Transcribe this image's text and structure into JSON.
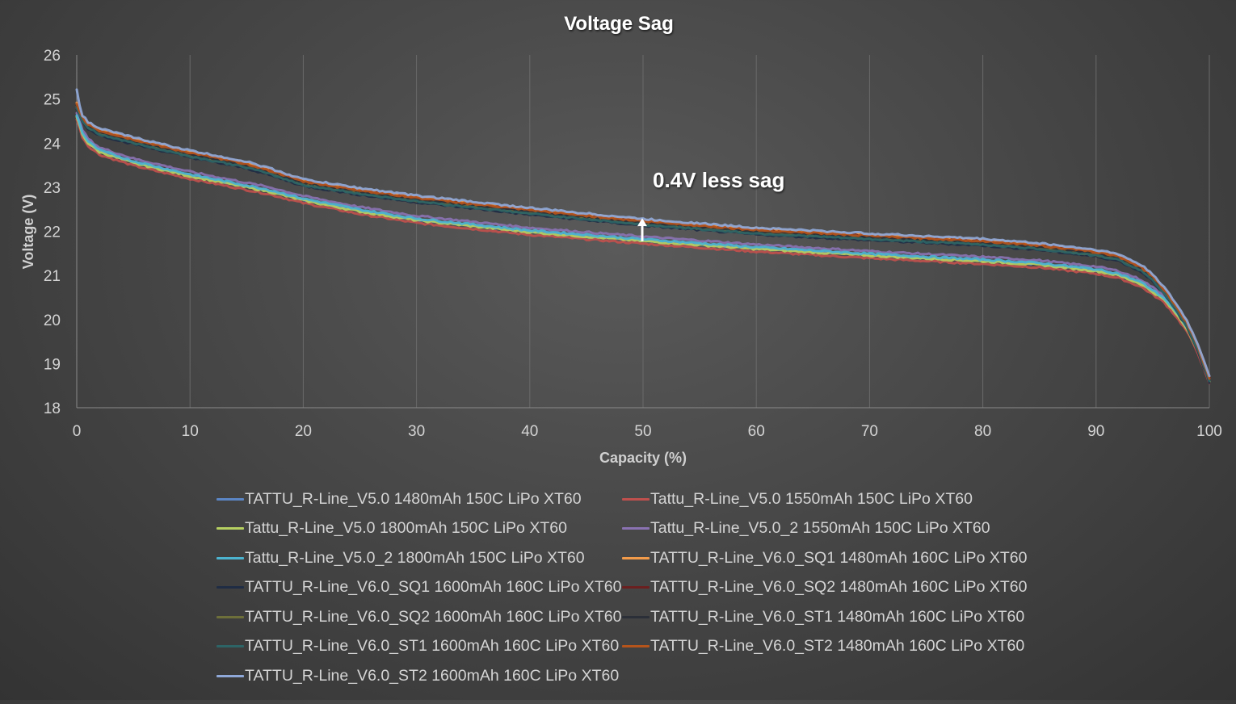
{
  "chart_data": {
    "type": "line",
    "title": "Voltage Sag",
    "xlabel": "Capacity (%)",
    "ylabel": "Voltage (V)",
    "xlim": [
      0,
      100
    ],
    "ylim": [
      18,
      26
    ],
    "xticks": [
      0,
      10,
      20,
      30,
      40,
      50,
      60,
      70,
      80,
      90,
      100
    ],
    "yticks": [
      18,
      19,
      20,
      21,
      22,
      23,
      24,
      25,
      26
    ],
    "grid": "vertical",
    "legend_position": "bottom",
    "annotation": {
      "text": "0.4V less sag",
      "x": 50,
      "y_from": 21.7,
      "y_to": 22.3
    },
    "series": [
      {
        "name": "TATTU_R-Line_V5.0 1480mAh 150C LiPo XT60",
        "color": "#5b86c5",
        "group": "v5",
        "offset": 0.02,
        "x": [
          0,
          0.5,
          1,
          2,
          5,
          10,
          15,
          17,
          20,
          25,
          30,
          40,
          50,
          60,
          70,
          80,
          85,
          90,
          92,
          94,
          96,
          97,
          98,
          99,
          100
        ],
        "y": [
          24.6,
          24.2,
          24.0,
          23.8,
          23.55,
          23.25,
          23.0,
          22.9,
          22.7,
          22.45,
          22.25,
          21.98,
          21.78,
          21.6,
          21.45,
          21.32,
          21.24,
          21.1,
          21.0,
          20.8,
          20.45,
          20.15,
          19.8,
          19.3,
          18.6
        ]
      },
      {
        "name": "Tattu_R-Line_V5.0 1550mAh 150C LiPo XT60",
        "color": "#c0504d",
        "group": "v5",
        "offset": -0.06,
        "x": [
          0,
          0.5,
          1,
          2,
          5,
          10,
          15,
          17,
          20,
          25,
          30,
          40,
          50,
          60,
          70,
          80,
          85,
          90,
          92,
          94,
          96,
          97,
          98,
          99,
          100
        ],
        "y": [
          24.6,
          24.2,
          24.0,
          23.8,
          23.55,
          23.25,
          23.0,
          22.9,
          22.7,
          22.45,
          22.25,
          21.98,
          21.78,
          21.6,
          21.45,
          21.32,
          21.24,
          21.1,
          21.0,
          20.8,
          20.45,
          20.15,
          19.8,
          19.3,
          18.6
        ]
      },
      {
        "name": "Tattu_R-Line_V5.0 1800mAh 150C LiPo XT60",
        "color": "#b6d061",
        "group": "v5",
        "offset": 0.0,
        "x": [
          0,
          0.5,
          1,
          2,
          5,
          10,
          15,
          17,
          20,
          25,
          30,
          40,
          50,
          60,
          70,
          80,
          85,
          90,
          92,
          94,
          96,
          97,
          98,
          99,
          100
        ],
        "y": [
          24.6,
          24.2,
          24.0,
          23.8,
          23.55,
          23.25,
          23.0,
          22.9,
          22.7,
          22.45,
          22.25,
          21.98,
          21.78,
          21.6,
          21.45,
          21.32,
          21.24,
          21.1,
          21.0,
          20.8,
          20.45,
          20.15,
          19.8,
          19.3,
          18.6
        ]
      },
      {
        "name": "Tattu_R-Line_V5.0_2 1550mAh 150C LiPo XT60",
        "color": "#8a72b2",
        "group": "v5",
        "offset": 0.1,
        "x": [
          0,
          0.5,
          1,
          2,
          5,
          10,
          15,
          17,
          20,
          25,
          30,
          40,
          50,
          60,
          70,
          80,
          85,
          90,
          92,
          94,
          96,
          97,
          98,
          99,
          100
        ],
        "y": [
          24.6,
          24.2,
          24.0,
          23.8,
          23.55,
          23.25,
          23.0,
          22.9,
          22.7,
          22.45,
          22.25,
          21.98,
          21.78,
          21.6,
          21.45,
          21.32,
          21.24,
          21.1,
          21.0,
          20.8,
          20.45,
          20.15,
          19.8,
          19.3,
          18.6
        ]
      },
      {
        "name": "Tattu_R-Line_V5.0_2 1800mAh 150C LiPo XT60",
        "color": "#4cb4d0",
        "group": "v5",
        "offset": 0.04,
        "x": [
          0,
          0.5,
          1,
          2,
          5,
          10,
          15,
          17,
          20,
          25,
          30,
          40,
          50,
          60,
          70,
          80,
          85,
          90,
          92,
          94,
          96,
          97,
          98,
          99,
          100
        ],
        "y": [
          24.6,
          24.2,
          24.0,
          23.8,
          23.55,
          23.25,
          23.0,
          22.9,
          22.7,
          22.45,
          22.25,
          21.98,
          21.78,
          21.6,
          21.45,
          21.32,
          21.24,
          21.1,
          21.0,
          20.8,
          20.45,
          20.15,
          19.8,
          19.3,
          18.6
        ]
      },
      {
        "name": "TATTU_R-Line_V6.0_SQ1 1480mAh 160C LiPo XT60",
        "color": "#f29b4a",
        "group": "v6",
        "offset": 0.0,
        "x": [
          0,
          0.5,
          1,
          2,
          5,
          10,
          15,
          17,
          20,
          25,
          30,
          40,
          50,
          60,
          70,
          80,
          85,
          90,
          92,
          94,
          95,
          96,
          97,
          98,
          99,
          100
        ],
        "y": [
          24.9,
          24.6,
          24.45,
          24.3,
          24.1,
          23.8,
          23.55,
          23.4,
          23.15,
          22.95,
          22.78,
          22.5,
          22.25,
          22.05,
          21.92,
          21.8,
          21.7,
          21.55,
          21.45,
          21.2,
          21.0,
          20.7,
          20.35,
          19.95,
          19.4,
          18.7
        ]
      },
      {
        "name": "TATTU_R-Line_V6.0_SQ1 1600mAh 160C LiPo XT60",
        "color": "#1f2c44",
        "group": "v6",
        "offset": -0.12,
        "x": [
          0,
          0.5,
          1,
          2,
          5,
          10,
          15,
          17,
          20,
          25,
          30,
          40,
          50,
          60,
          70,
          80,
          85,
          90,
          92,
          94,
          95,
          96,
          97,
          98,
          99,
          100
        ],
        "y": [
          24.9,
          24.6,
          24.45,
          24.3,
          24.1,
          23.8,
          23.55,
          23.4,
          23.15,
          22.95,
          22.78,
          22.5,
          22.25,
          22.05,
          21.92,
          21.8,
          21.7,
          21.55,
          21.45,
          21.2,
          21.0,
          20.7,
          20.35,
          19.95,
          19.4,
          18.7
        ]
      },
      {
        "name": "TATTU_R-Line_V6.0_SQ2 1480mAh 160C LiPo XT60",
        "color": "#6b1f1f",
        "group": "v6",
        "offset": -0.03,
        "x": [
          0,
          0.5,
          1,
          2,
          5,
          10,
          15,
          17,
          20,
          25,
          30,
          40,
          50,
          60,
          70,
          80,
          85,
          90,
          92,
          94,
          95,
          96,
          97,
          98,
          99,
          100
        ],
        "y": [
          24.9,
          24.6,
          24.45,
          24.3,
          24.1,
          23.8,
          23.55,
          23.4,
          23.15,
          22.95,
          22.78,
          22.5,
          22.25,
          22.05,
          21.92,
          21.8,
          21.7,
          21.55,
          21.45,
          21.2,
          21.0,
          20.7,
          20.35,
          19.95,
          19.4,
          18.7
        ]
      },
      {
        "name": "TATTU_R-Line_V6.0_SQ2 1600mAh 160C LiPo XT60",
        "color": "#6d6f3a",
        "group": "v6",
        "offset": -0.08,
        "x": [
          0,
          0.5,
          1,
          2,
          5,
          10,
          15,
          17,
          20,
          25,
          30,
          40,
          50,
          60,
          70,
          80,
          85,
          90,
          92,
          94,
          95,
          96,
          97,
          98,
          99,
          100
        ],
        "y": [
          24.9,
          24.6,
          24.45,
          24.3,
          24.1,
          23.8,
          23.55,
          23.4,
          23.15,
          22.95,
          22.78,
          22.5,
          22.25,
          22.05,
          21.92,
          21.8,
          21.7,
          21.55,
          21.45,
          21.2,
          21.0,
          20.7,
          20.35,
          19.95,
          19.4,
          18.7
        ]
      },
      {
        "name": "TATTU_R-Line_V6.0_ST1 1480mAh 160C LiPo XT60",
        "color": "#2b2f38",
        "group": "v6",
        "offset": -0.05,
        "x": [
          0,
          0.5,
          1,
          2,
          5,
          10,
          15,
          17,
          20,
          25,
          30,
          40,
          50,
          60,
          70,
          80,
          85,
          90,
          92,
          94,
          95,
          96,
          97,
          98,
          99,
          100
        ],
        "y": [
          24.9,
          24.6,
          24.45,
          24.3,
          24.1,
          23.8,
          23.55,
          23.4,
          23.15,
          22.95,
          22.78,
          22.5,
          22.25,
          22.05,
          21.92,
          21.8,
          21.7,
          21.55,
          21.45,
          21.2,
          21.0,
          20.7,
          20.35,
          19.95,
          19.4,
          18.7
        ]
      },
      {
        "name": "TATTU_R-Line_V6.0_ST1 1600mAh 160C LiPo XT60",
        "color": "#2d6466",
        "group": "v6",
        "offset": -0.1,
        "x": [
          0,
          0.5,
          1,
          2,
          5,
          10,
          15,
          17,
          20,
          25,
          30,
          40,
          50,
          60,
          70,
          80,
          85,
          90,
          92,
          94,
          95,
          96,
          97,
          98,
          99,
          100
        ],
        "y": [
          24.9,
          24.6,
          24.45,
          24.3,
          24.1,
          23.8,
          23.55,
          23.4,
          23.15,
          22.95,
          22.78,
          22.5,
          22.25,
          22.05,
          21.92,
          21.8,
          21.7,
          21.55,
          21.45,
          21.2,
          21.0,
          20.7,
          20.35,
          19.95,
          19.4,
          18.7
        ]
      },
      {
        "name": "TATTU_R-Line_V6.0_ST2 1480mAh 160C LiPo XT60",
        "color": "#b5541b",
        "group": "v6",
        "offset": -0.02,
        "x": [
          0,
          0.5,
          1,
          2,
          5,
          10,
          15,
          17,
          20,
          25,
          30,
          40,
          50,
          60,
          70,
          80,
          85,
          90,
          92,
          94,
          95,
          96,
          97,
          98,
          99,
          100
        ],
        "y": [
          24.9,
          24.6,
          24.45,
          24.3,
          24.1,
          23.8,
          23.55,
          23.4,
          23.15,
          22.95,
          22.78,
          22.5,
          22.25,
          22.05,
          21.92,
          21.8,
          21.7,
          21.55,
          21.45,
          21.2,
          21.0,
          20.7,
          20.35,
          19.95,
          19.4,
          18.7
        ]
      },
      {
        "name": "TATTU_R-Line_V6.0_ST2 1600mAh 160C LiPo XT60",
        "color": "#8fa8d8",
        "group": "v6",
        "offset": 0.03,
        "x": [
          0,
          0.3,
          0.5,
          1,
          2,
          5,
          10,
          15,
          17,
          20,
          25,
          30,
          40,
          50,
          60,
          70,
          80,
          85,
          90,
          92,
          94,
          95,
          96,
          97,
          98,
          99,
          100
        ],
        "y": [
          25.2,
          24.75,
          24.6,
          24.45,
          24.3,
          24.1,
          23.8,
          23.55,
          23.4,
          23.15,
          22.95,
          22.78,
          22.5,
          22.25,
          22.05,
          21.92,
          21.8,
          21.7,
          21.55,
          21.45,
          21.2,
          21.0,
          20.7,
          20.35,
          19.95,
          19.4,
          18.7
        ]
      }
    ]
  }
}
